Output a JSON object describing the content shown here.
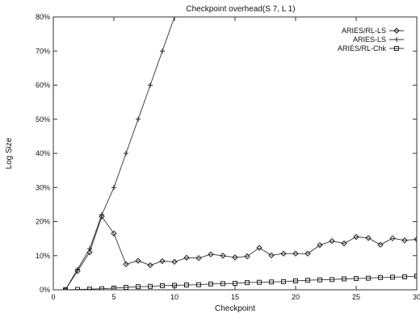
{
  "chart_data": {
    "type": "line",
    "title": "Checkpoint overhead(S 7, L 1)",
    "xlabel": "Checkpoint",
    "ylabel": "Log Size",
    "xlim": [
      0,
      30
    ],
    "ylim": [
      0,
      80
    ],
    "xticks": [
      0,
      5,
      10,
      15,
      20,
      25,
      30
    ],
    "yticks": [
      0,
      10,
      20,
      30,
      40,
      50,
      60,
      70,
      80
    ],
    "ytick_labels": [
      "0%",
      "10%",
      "20%",
      "30%",
      "40%",
      "50%",
      "60%",
      "70%",
      "80%"
    ],
    "grid": false,
    "legend_position": "top-right",
    "series": [
      {
        "name": "ARIES/RL-LS",
        "marker": "diamond",
        "x": [
          1,
          2,
          3,
          4,
          5,
          6,
          7,
          8,
          9,
          10,
          11,
          12,
          13,
          14,
          15,
          16,
          17,
          18,
          19,
          20,
          21,
          22,
          23,
          24,
          25,
          26,
          27,
          28,
          29,
          30
        ],
        "values": [
          0,
          5.5,
          11,
          21.5,
          16.5,
          7.5,
          8.5,
          7.2,
          8.4,
          8.2,
          9.4,
          9.3,
          10.4,
          10.0,
          9.5,
          9.8,
          12.3,
          10.1,
          10.6,
          10.6,
          10.6,
          13.1,
          14.3,
          13.6,
          15.5,
          15.2,
          13.2,
          15.1,
          14.5,
          14.8
        ]
      },
      {
        "name": "ARIES-LS",
        "marker": "plus",
        "x": [
          1,
          2,
          3,
          4,
          5,
          6,
          7,
          8,
          9,
          10
        ],
        "values": [
          0,
          6,
          12,
          22,
          30,
          40,
          50,
          60,
          70,
          80
        ]
      },
      {
        "name": "ARIES/RL-Chk",
        "marker": "square",
        "x": [
          1,
          2,
          3,
          4,
          5,
          6,
          7,
          8,
          9,
          10,
          11,
          12,
          13,
          14,
          15,
          16,
          17,
          18,
          19,
          20,
          21,
          22,
          23,
          24,
          25,
          26,
          27,
          28,
          29,
          30
        ],
        "values": [
          0,
          0.1,
          0.2,
          0.3,
          0.5,
          0.7,
          0.9,
          1.0,
          1.2,
          1.3,
          1.4,
          1.5,
          1.7,
          1.8,
          1.9,
          2.1,
          2.2,
          2.3,
          2.4,
          2.6,
          2.8,
          2.9,
          3.0,
          3.2,
          3.3,
          3.4,
          3.6,
          3.7,
          3.8,
          4.0
        ]
      }
    ]
  }
}
